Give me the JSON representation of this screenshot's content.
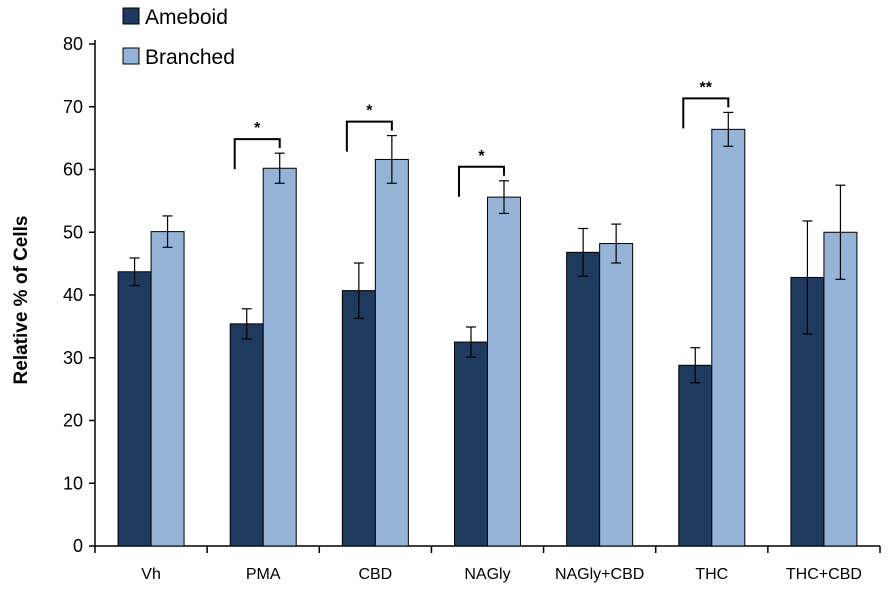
{
  "chart_data": {
    "type": "bar",
    "title": "",
    "xlabel": "",
    "ylabel": "Relative % of Cells",
    "ylim": [
      0,
      80
    ],
    "yticks": [
      0,
      10,
      20,
      30,
      40,
      50,
      60,
      70,
      80
    ],
    "categories": [
      "Vh",
      "PMA",
      "CBD",
      "NAGly",
      "NAGly+CBD",
      "THC",
      "THC+CBD"
    ],
    "series": [
      {
        "name": "Ameboid",
        "color": "#1f3a5f",
        "values": [
          43.7,
          35.4,
          40.7,
          32.5,
          46.8,
          28.8,
          42.8
        ],
        "errors": [
          2.2,
          2.4,
          4.4,
          2.4,
          3.8,
          2.8,
          9.0
        ]
      },
      {
        "name": "Branched",
        "color": "#95b3d7",
        "values": [
          50.1,
          60.2,
          61.6,
          55.6,
          48.2,
          66.4,
          50.0
        ],
        "errors": [
          2.5,
          2.4,
          3.8,
          2.6,
          3.1,
          2.7,
          7.5
        ]
      }
    ],
    "legend": {
      "placement": "top-left"
    },
    "annotations": [
      {
        "category": "PMA",
        "text": "*"
      },
      {
        "category": "CBD",
        "text": "*"
      },
      {
        "category": "NAGly",
        "text": "*"
      },
      {
        "category": "THC",
        "text": "**"
      }
    ]
  }
}
